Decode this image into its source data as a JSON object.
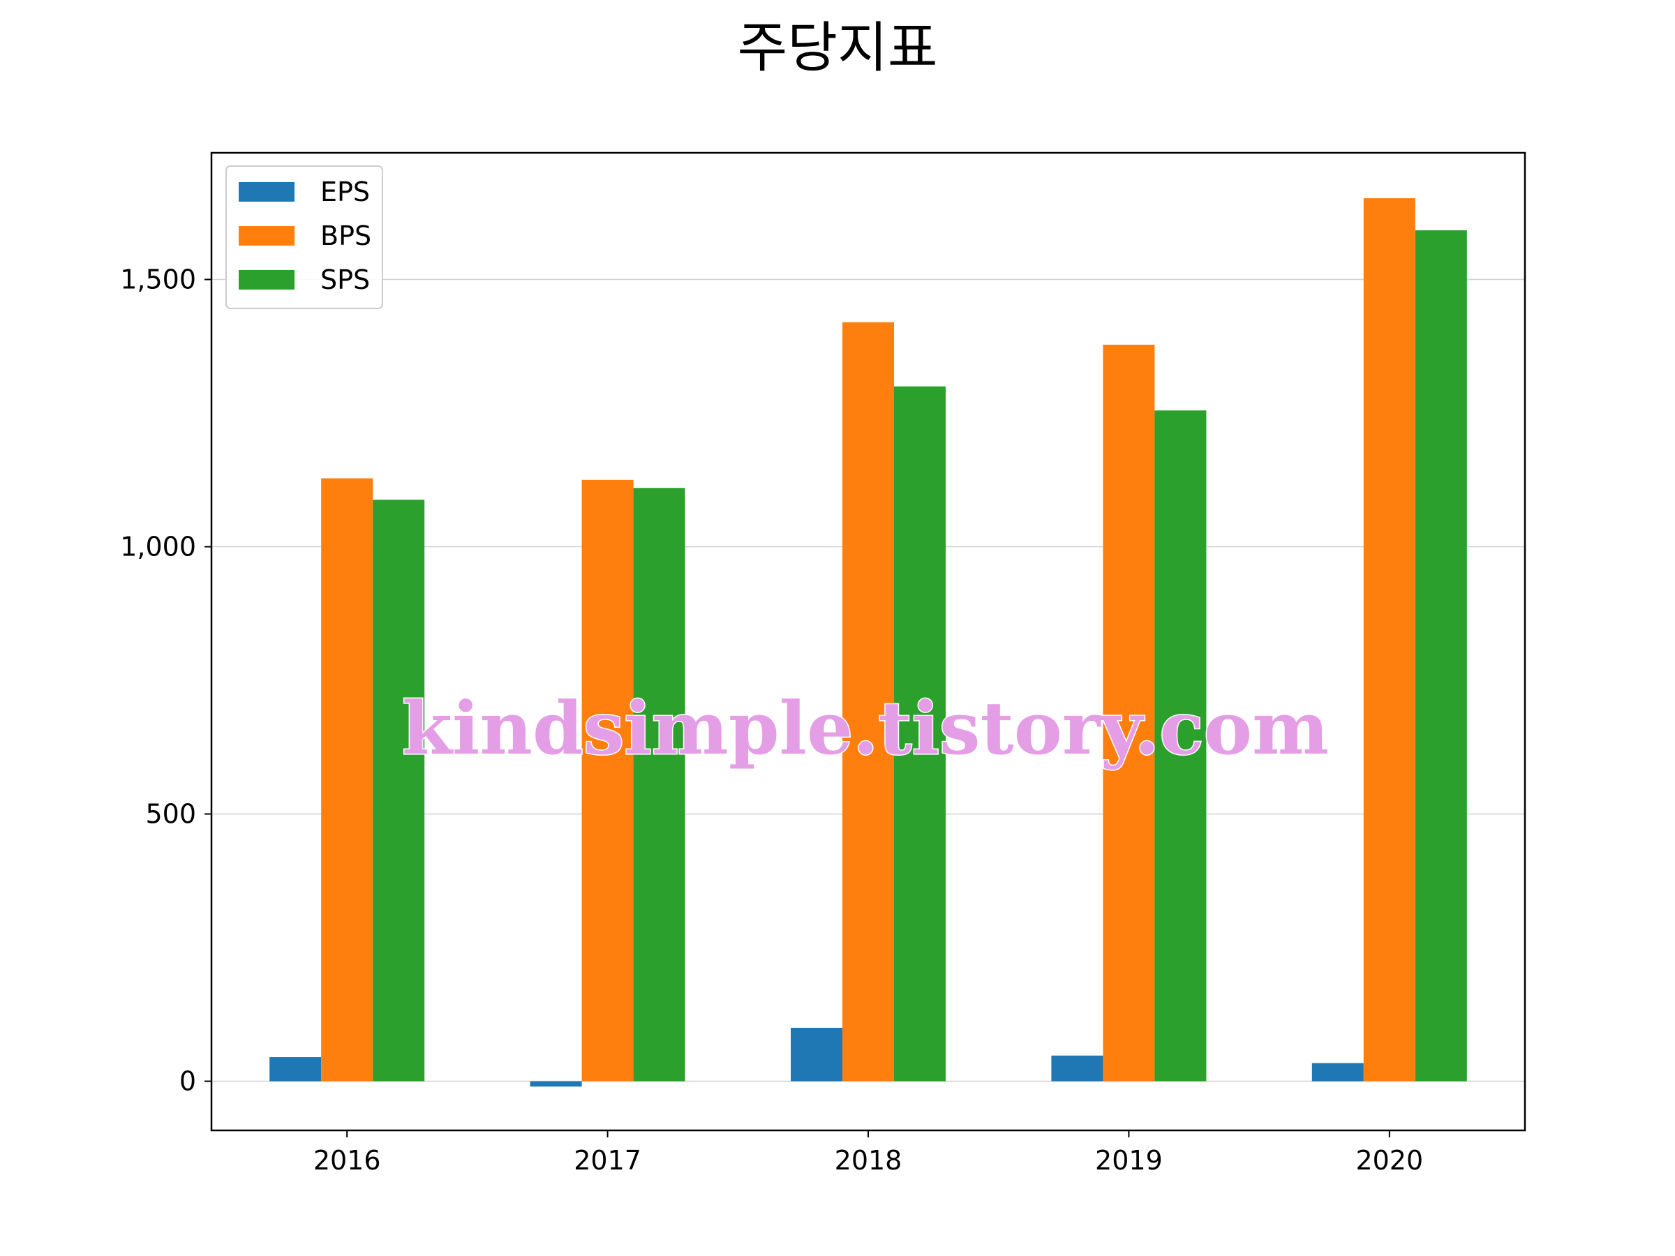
{
  "chart_data": {
    "type": "bar",
    "title": "주당지표",
    "xlabel": "",
    "ylabel": "",
    "categories": [
      "2016",
      "2017",
      "2018",
      "2019",
      "2020"
    ],
    "series": [
      {
        "name": "EPS",
        "color": "#1f77b4",
        "values": [
          45,
          -10,
          100,
          48,
          34
        ]
      },
      {
        "name": "BPS",
        "color": "#ff7f0e",
        "values": [
          1128,
          1125,
          1420,
          1378,
          1652
        ]
      },
      {
        "name": "SPS",
        "color": "#2ca02c",
        "values": [
          1088,
          1110,
          1300,
          1255,
          1592
        ]
      }
    ],
    "ylim": [
      -92,
      1737
    ],
    "yticks": [
      0,
      500,
      1000,
      1500
    ],
    "ytick_labels": [
      "0",
      "500",
      "1,000",
      "1,500"
    ],
    "grid": "y",
    "legend_position": "top-left"
  },
  "watermark": "kindsimple.tistory.com"
}
